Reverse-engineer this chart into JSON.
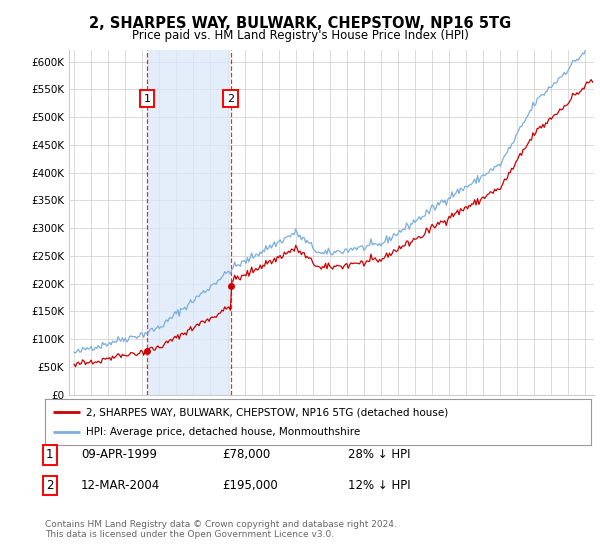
{
  "title": "2, SHARPES WAY, BULWARK, CHEPSTOW, NP16 5TG",
  "subtitle": "Price paid vs. HM Land Registry's House Price Index (HPI)",
  "ylim": [
    0,
    620000
  ],
  "yticks": [
    0,
    50000,
    100000,
    150000,
    200000,
    250000,
    300000,
    350000,
    400000,
    450000,
    500000,
    550000,
    600000
  ],
  "ytick_labels": [
    "£0",
    "£50K",
    "£100K",
    "£150K",
    "£200K",
    "£250K",
    "£300K",
    "£350K",
    "£400K",
    "£450K",
    "£500K",
    "£550K",
    "£600K"
  ],
  "xlim_start": 1994.7,
  "xlim_end": 2025.5,
  "background_color": "#ffffff",
  "plot_bg_color": "#ffffff",
  "grid_color": "#cccccc",
  "hpi_color": "#7aaedd",
  "hpi_fill_color": "#d8e8f8",
  "sold_color": "#cc0000",
  "sale1_x": 1999.27,
  "sale1_y": 78000,
  "sale1_label": "1",
  "sale1_date": "09-APR-1999",
  "sale1_price": "£78,000",
  "sale1_hpi": "28% ↓ HPI",
  "sale2_x": 2004.18,
  "sale2_y": 195000,
  "sale2_label": "2",
  "sale2_date": "12-MAR-2004",
  "sale2_price": "£195,000",
  "sale2_hpi": "12% ↓ HPI",
  "legend_line1": "2, SHARPES WAY, BULWARK, CHEPSTOW, NP16 5TG (detached house)",
  "legend_line2": "HPI: Average price, detached house, Monmouthshire",
  "footer": "Contains HM Land Registry data © Crown copyright and database right 2024.\nThis data is licensed under the Open Government Licence v3.0.",
  "hpi_seed": 42
}
